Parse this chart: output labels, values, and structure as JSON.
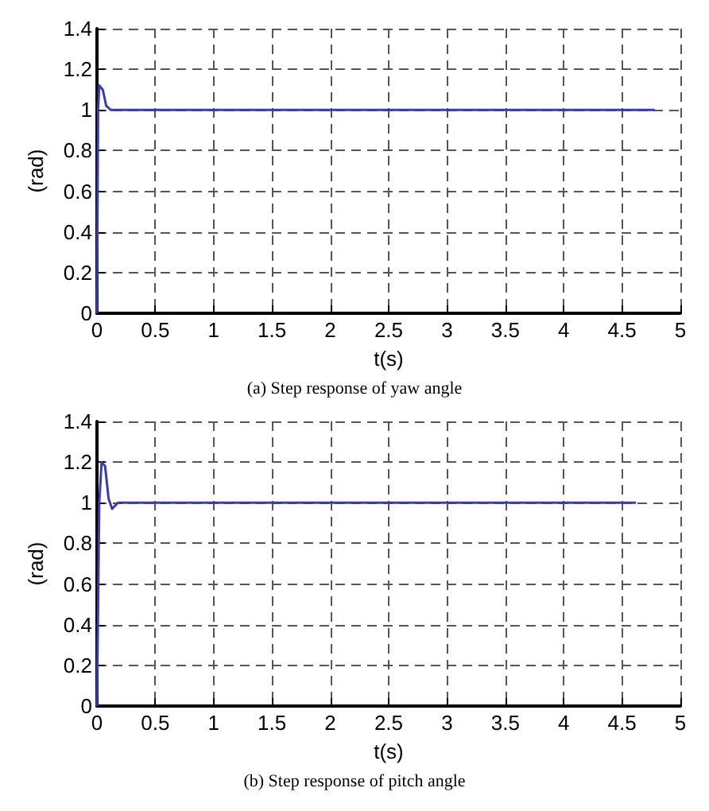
{
  "chart_data": [
    {
      "type": "line",
      "title": "(a) Step response of yaw angle",
      "xlabel": "t(s)",
      "ylabel": "(rad)",
      "xlim": [
        0,
        5
      ],
      "xticks": [
        0,
        0.5,
        1,
        1.5,
        2,
        2.5,
        3,
        3.5,
        4,
        4.5,
        5
      ],
      "ylim": [
        0,
        1.4
      ],
      "yticks": [
        0,
        0.2,
        0.4,
        0.6,
        0.8,
        1,
        1.2,
        1.4
      ],
      "grid": true,
      "line_style": "solid",
      "marker": "none",
      "series": [
        {
          "color": "#3a3ab8",
          "x": [
            0,
            0.01,
            0.02,
            0.05,
            0.08,
            0.12,
            0.5,
            1,
            2,
            3,
            4,
            4.78
          ],
          "values": [
            0,
            1.0,
            1.12,
            1.1,
            1.02,
            1.0,
            1.0,
            1.0,
            1.0,
            1.0,
            1.0,
            1.0
          ]
        }
      ]
    },
    {
      "type": "line",
      "title": "(b) Step response of pitch angle",
      "xlabel": "t(s)",
      "ylabel": "(rad)",
      "xlim": [
        0,
        5
      ],
      "xticks": [
        0,
        0.5,
        1,
        1.5,
        2,
        2.5,
        3,
        3.5,
        4,
        4.5,
        5
      ],
      "ylim": [
        0,
        1.4
      ],
      "yticks": [
        0,
        0.2,
        0.4,
        0.6,
        0.8,
        1,
        1.2,
        1.4
      ],
      "grid": true,
      "line_style": "solid",
      "marker": "none",
      "series": [
        {
          "color": "#3a3ab8",
          "x": [
            0,
            0.02,
            0.04,
            0.07,
            0.1,
            0.13,
            0.18,
            0.5,
            1,
            2,
            3,
            4,
            4.62
          ],
          "values": [
            0,
            1.0,
            1.2,
            1.18,
            1.02,
            0.97,
            1.0,
            1.0,
            1.0,
            1.0,
            1.0,
            1.0,
            1.0
          ]
        }
      ]
    }
  ]
}
